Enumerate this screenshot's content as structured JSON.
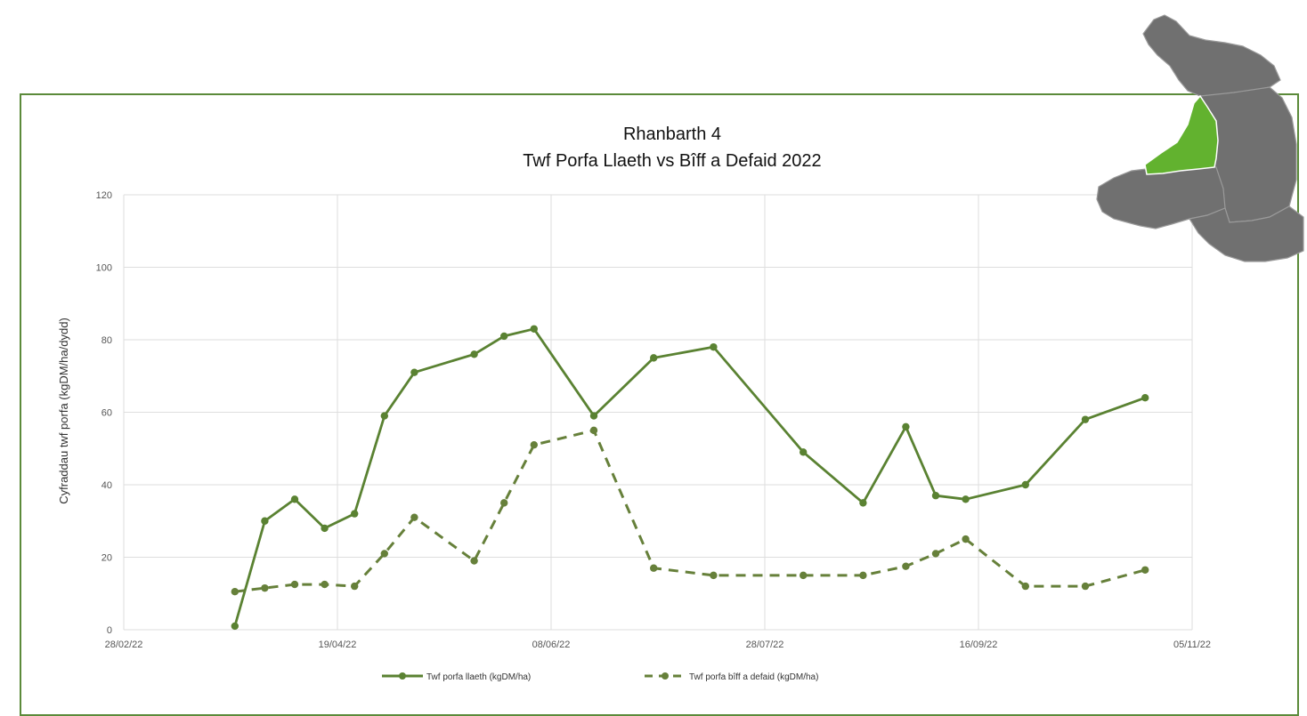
{
  "chart_data": {
    "type": "line",
    "title": "Rhanbarth 4",
    "subtitle": "Twf Porfa Llaeth vs Bîff a Defaid 2022",
    "ylabel": "Cyfraddau twf porfa (kgDM/ha/dydd)",
    "xlabel": "",
    "x_tick_labels": [
      "28/02/22",
      "19/04/22",
      "08/06/22",
      "28/07/22",
      "16/09/22",
      "05/11/22"
    ],
    "x_tick_dates": [
      "2022-02-28",
      "2022-04-19",
      "2022-06-08",
      "2022-07-28",
      "2022-09-16",
      "2022-11-05"
    ],
    "xlim": [
      "2022-02-28",
      "2022-11-05"
    ],
    "ylim": [
      0,
      120
    ],
    "y_ticks": [
      0,
      20,
      40,
      60,
      80,
      100,
      120
    ],
    "grid": true,
    "legend": "bottom",
    "series": [
      {
        "name": "Twf porfa llaeth (kgDM/ha)",
        "style": "solid",
        "color": "#5a8232",
        "x": [
          "2022-03-26",
          "2022-04-02",
          "2022-04-09",
          "2022-04-16",
          "2022-04-23",
          "2022-04-30",
          "2022-05-07",
          "2022-05-21",
          "2022-05-28",
          "2022-06-04",
          "2022-06-18",
          "2022-07-02",
          "2022-07-16",
          "2022-08-06",
          "2022-08-20",
          "2022-08-30",
          "2022-09-06",
          "2022-09-13",
          "2022-09-27",
          "2022-10-11",
          "2022-10-25"
        ],
        "values": [
          1,
          30,
          36,
          28,
          32,
          59,
          71,
          76,
          81,
          83,
          59,
          75,
          78,
          49,
          35,
          56,
          37,
          36,
          40,
          58,
          64
        ]
      },
      {
        "name": "Twf porfa bîff a defaid (kgDM/ha)",
        "style": "dashed",
        "color": "#66803a",
        "x": [
          "2022-03-26",
          "2022-04-02",
          "2022-04-09",
          "2022-04-16",
          "2022-04-23",
          "2022-04-30",
          "2022-05-07",
          "2022-05-21",
          "2022-05-28",
          "2022-06-04",
          "2022-06-18",
          "2022-07-02",
          "2022-07-16",
          "2022-08-06",
          "2022-08-20",
          "2022-08-30",
          "2022-09-06",
          "2022-09-13",
          "2022-09-27",
          "2022-10-11",
          "2022-10-25"
        ],
        "values": [
          10.5,
          11.5,
          12.5,
          12.5,
          12,
          21,
          31,
          19,
          35,
          51,
          55,
          17,
          15,
          15,
          15,
          17.5,
          21,
          25,
          12,
          12,
          16.5
        ]
      }
    ]
  },
  "colors": {
    "frame_border": "#5b8a3a",
    "map_region_highlight": "#62b22f",
    "map_region_other": "#707070"
  }
}
